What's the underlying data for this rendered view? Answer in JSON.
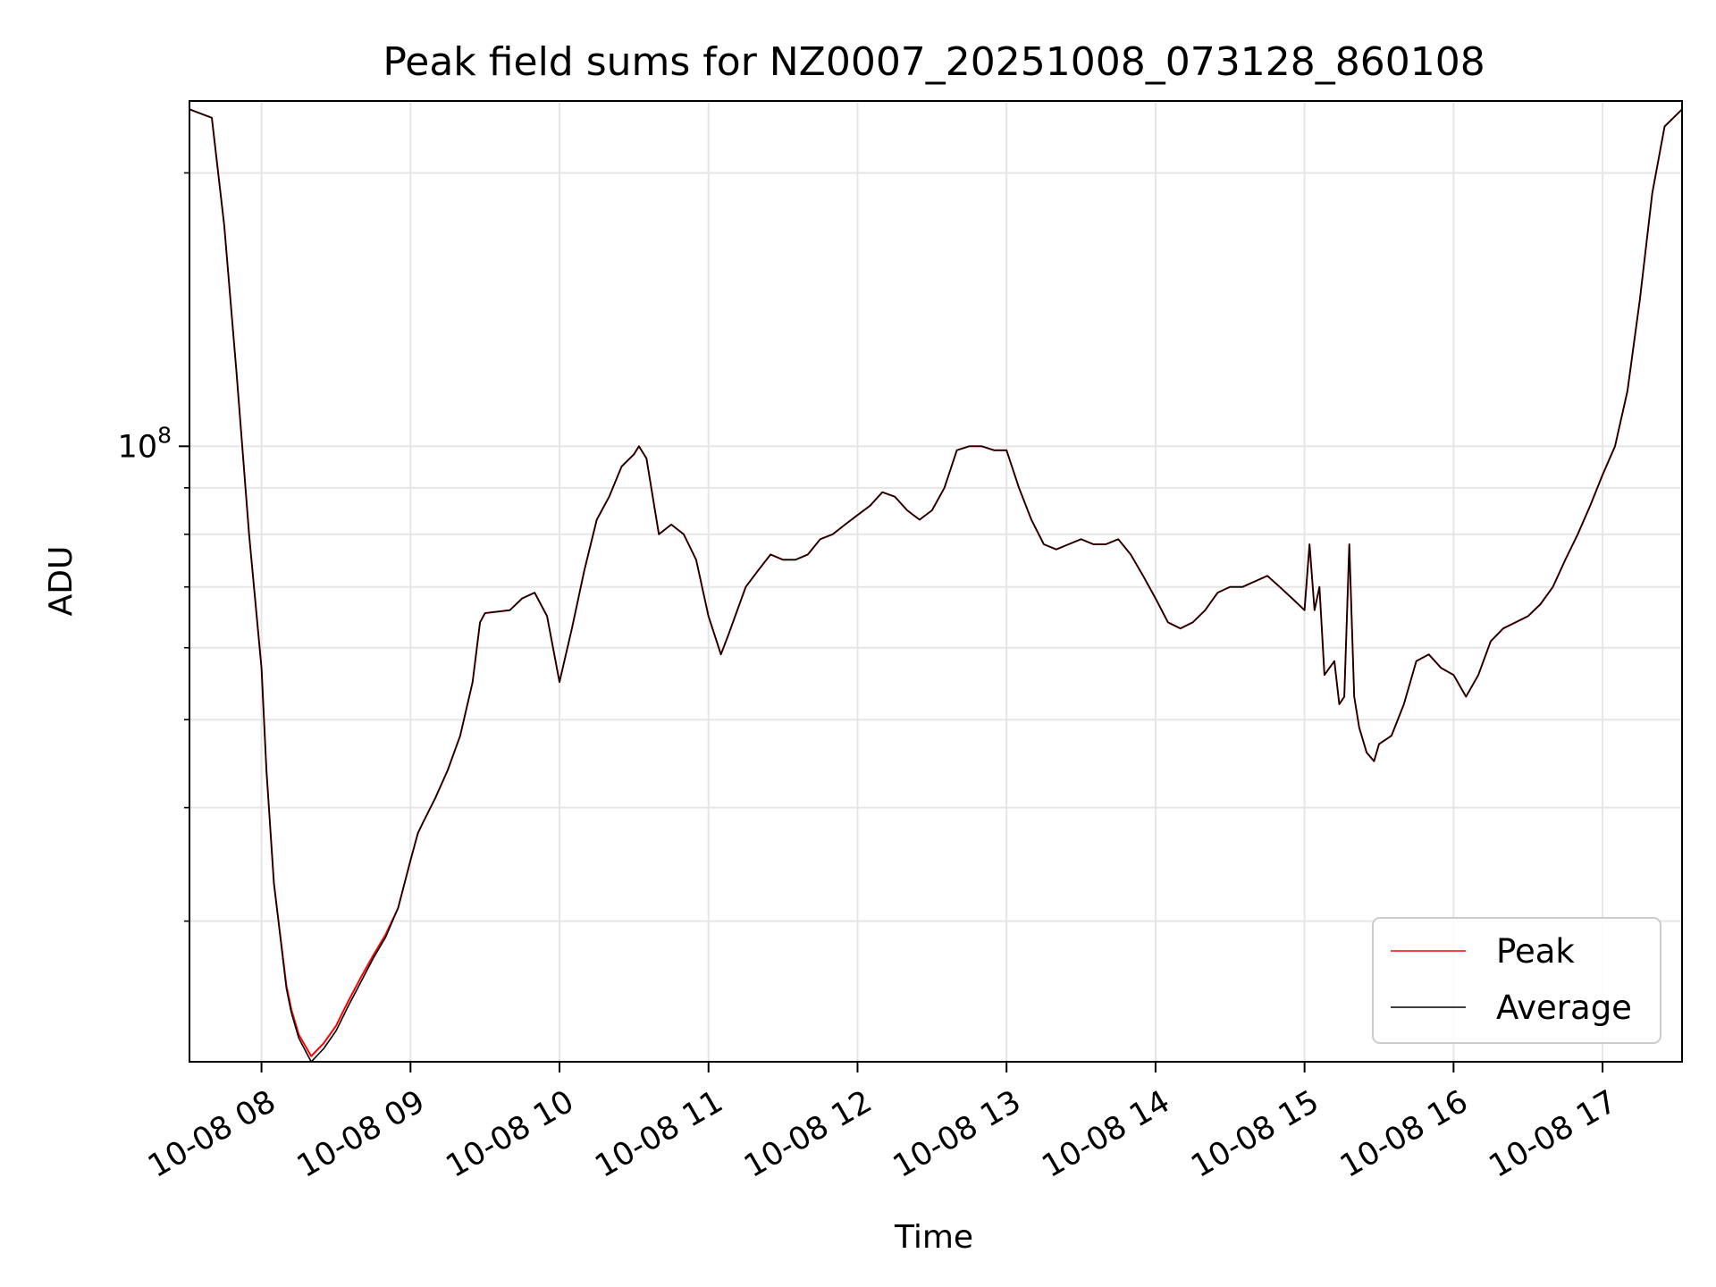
{
  "chart_data": {
    "type": "line",
    "title": "Peak field sums for NZ0007_20251008_073128_860108",
    "xlabel": "Time",
    "ylabel": "ADU",
    "y_scale": "log",
    "ylim": [
      21000000,
      240000000
    ],
    "y_major_ticks": [
      {
        "value": 100000000,
        "base": "10",
        "exponent": "8"
      }
    ],
    "y_minor_ticks": [
      30000000,
      40000000,
      50000000,
      60000000,
      70000000,
      80000000,
      90000000,
      200000000
    ],
    "xlim": [
      "2025-10-08 07:31",
      "2025-10-08 17:32"
    ],
    "x_ticks": [
      {
        "time": "2025-10-08 08:00",
        "label": "10-08 08"
      },
      {
        "time": "2025-10-08 09:00",
        "label": "10-08 09"
      },
      {
        "time": "2025-10-08 10:00",
        "label": "10-08 10"
      },
      {
        "time": "2025-10-08 11:00",
        "label": "10-08 11"
      },
      {
        "time": "2025-10-08 12:00",
        "label": "10-08 12"
      },
      {
        "time": "2025-10-08 13:00",
        "label": "10-08 13"
      },
      {
        "time": "2025-10-08 14:00",
        "label": "10-08 14"
      },
      {
        "time": "2025-10-08 15:00",
        "label": "10-08 15"
      },
      {
        "time": "2025-10-08 16:00",
        "label": "10-08 16"
      },
      {
        "time": "2025-10-08 17:00",
        "label": "10-08 17"
      }
    ],
    "grid": true,
    "legend_position": "lower-right",
    "x": [
      "07:31",
      "07:40",
      "07:45",
      "07:50",
      "07:55",
      "08:00",
      "08:02",
      "08:05",
      "08:10",
      "08:12",
      "08:15",
      "08:20",
      "08:25",
      "08:30",
      "08:35",
      "08:40",
      "08:45",
      "08:50",
      "08:55",
      "09:00",
      "09:03",
      "09:05",
      "09:10",
      "09:15",
      "09:20",
      "09:25",
      "09:28",
      "09:30",
      "09:40",
      "09:45",
      "09:50",
      "09:55",
      "10:00",
      "10:05",
      "10:10",
      "10:15",
      "10:20",
      "10:25",
      "10:30",
      "10:32",
      "10:35",
      "10:40",
      "10:45",
      "10:50",
      "10:55",
      "11:00",
      "11:05",
      "11:08",
      "11:15",
      "11:20",
      "11:25",
      "11:30",
      "11:35",
      "11:40",
      "11:45",
      "11:50",
      "11:55",
      "12:00",
      "12:05",
      "12:10",
      "12:15",
      "12:20",
      "12:25",
      "12:30",
      "12:35",
      "12:40",
      "12:45",
      "12:50",
      "12:55",
      "13:00",
      "13:05",
      "13:10",
      "13:15",
      "13:20",
      "13:25",
      "13:30",
      "13:35",
      "13:40",
      "13:45",
      "13:50",
      "13:55",
      "14:00",
      "14:05",
      "14:10",
      "14:15",
      "14:20",
      "14:25",
      "14:30",
      "14:35",
      "14:40",
      "14:45",
      "14:50",
      "14:55",
      "15:00",
      "15:02",
      "15:04",
      "15:06",
      "15:08",
      "15:10",
      "15:12",
      "15:14",
      "15:16",
      "15:18",
      "15:20",
      "15:22",
      "15:25",
      "15:28",
      "15:30",
      "15:35",
      "15:40",
      "15:45",
      "15:50",
      "15:55",
      "16:00",
      "16:05",
      "16:10",
      "16:15",
      "16:20",
      "16:25",
      "16:30",
      "16:35",
      "16:40",
      "16:45",
      "16:50",
      "16:55",
      "17:00",
      "17:05",
      "17:10",
      "17:15",
      "17:20",
      "17:25",
      "17:32"
    ],
    "series": [
      {
        "name": "Peak",
        "color": "#ff0000",
        "values": [
          235000000,
          230000000,
          175000000,
          120000000,
          80000000,
          57000000,
          44000000,
          33000000,
          25500000,
          24000000,
          22500000,
          21300000,
          22000000,
          23000000,
          24500000,
          26000000,
          27500000,
          29000000,
          31000000,
          35000000,
          37500000,
          38500000,
          41000000,
          44000000,
          48000000,
          55000000,
          64000000,
          65500000,
          66000000,
          68000000,
          69000000,
          65000000,
          55000000,
          63000000,
          73000000,
          83000000,
          88000000,
          95000000,
          98000000,
          100000000,
          97000000,
          80000000,
          82000000,
          80000000,
          75000000,
          65000000,
          59000000,
          62000000,
          70000000,
          73000000,
          76000000,
          75000000,
          75000000,
          76000000,
          79000000,
          80000000,
          82000000,
          84000000,
          86000000,
          89000000,
          88000000,
          85000000,
          83000000,
          85000000,
          90000000,
          99000000,
          100000000,
          100000000,
          99000000,
          99000000,
          90000000,
          83000000,
          78000000,
          77000000,
          78000000,
          79000000,
          78000000,
          78000000,
          79000000,
          76000000,
          72000000,
          68000000,
          64000000,
          63000000,
          64000000,
          66000000,
          69000000,
          70000000,
          70000000,
          71000000,
          72000000,
          70000000,
          68000000,
          66000000,
          78000000,
          66000000,
          70000000,
          56000000,
          57000000,
          58000000,
          52000000,
          53000000,
          78000000,
          53000000,
          49000000,
          46000000,
          45000000,
          47000000,
          48000000,
          52000000,
          58000000,
          59000000,
          57000000,
          56000000,
          53000000,
          56000000,
          61000000,
          63000000,
          64000000,
          65000000,
          67000000,
          70000000,
          75000000,
          80000000,
          86000000,
          93000000,
          100000000,
          115000000,
          145000000,
          190000000,
          225000000,
          235000000
        ]
      },
      {
        "name": "Average",
        "color": "#000000",
        "values": [
          235000000,
          230000000,
          175000000,
          120000000,
          80000000,
          57000000,
          44000000,
          33000000,
          25300000,
          23800000,
          22300000,
          21000000,
          21700000,
          22700000,
          24200000,
          25700000,
          27300000,
          28800000,
          31000000,
          35000000,
          37500000,
          38500000,
          41000000,
          44000000,
          48000000,
          55000000,
          64000000,
          65500000,
          66000000,
          68000000,
          69000000,
          65000000,
          55000000,
          63000000,
          73000000,
          83000000,
          88000000,
          95000000,
          98000000,
          100000000,
          97000000,
          80000000,
          82000000,
          80000000,
          75000000,
          65000000,
          59000000,
          62000000,
          70000000,
          73000000,
          76000000,
          75000000,
          75000000,
          76000000,
          79000000,
          80000000,
          82000000,
          84000000,
          86000000,
          89000000,
          88000000,
          85000000,
          83000000,
          85000000,
          90000000,
          99000000,
          100000000,
          100000000,
          99000000,
          99000000,
          90000000,
          83000000,
          78000000,
          77000000,
          78000000,
          79000000,
          78000000,
          78000000,
          79000000,
          76000000,
          72000000,
          68000000,
          64000000,
          63000000,
          64000000,
          66000000,
          69000000,
          70000000,
          70000000,
          71000000,
          72000000,
          70000000,
          68000000,
          66000000,
          78000000,
          66000000,
          70000000,
          56000000,
          57000000,
          58000000,
          52000000,
          53000000,
          78000000,
          53000000,
          49000000,
          46000000,
          45000000,
          47000000,
          48000000,
          52000000,
          58000000,
          59000000,
          57000000,
          56000000,
          53000000,
          56000000,
          61000000,
          63000000,
          64000000,
          65000000,
          67000000,
          70000000,
          75000000,
          80000000,
          86000000,
          93000000,
          100000000,
          115000000,
          145000000,
          190000000,
          225000000,
          235000000
        ]
      }
    ]
  }
}
